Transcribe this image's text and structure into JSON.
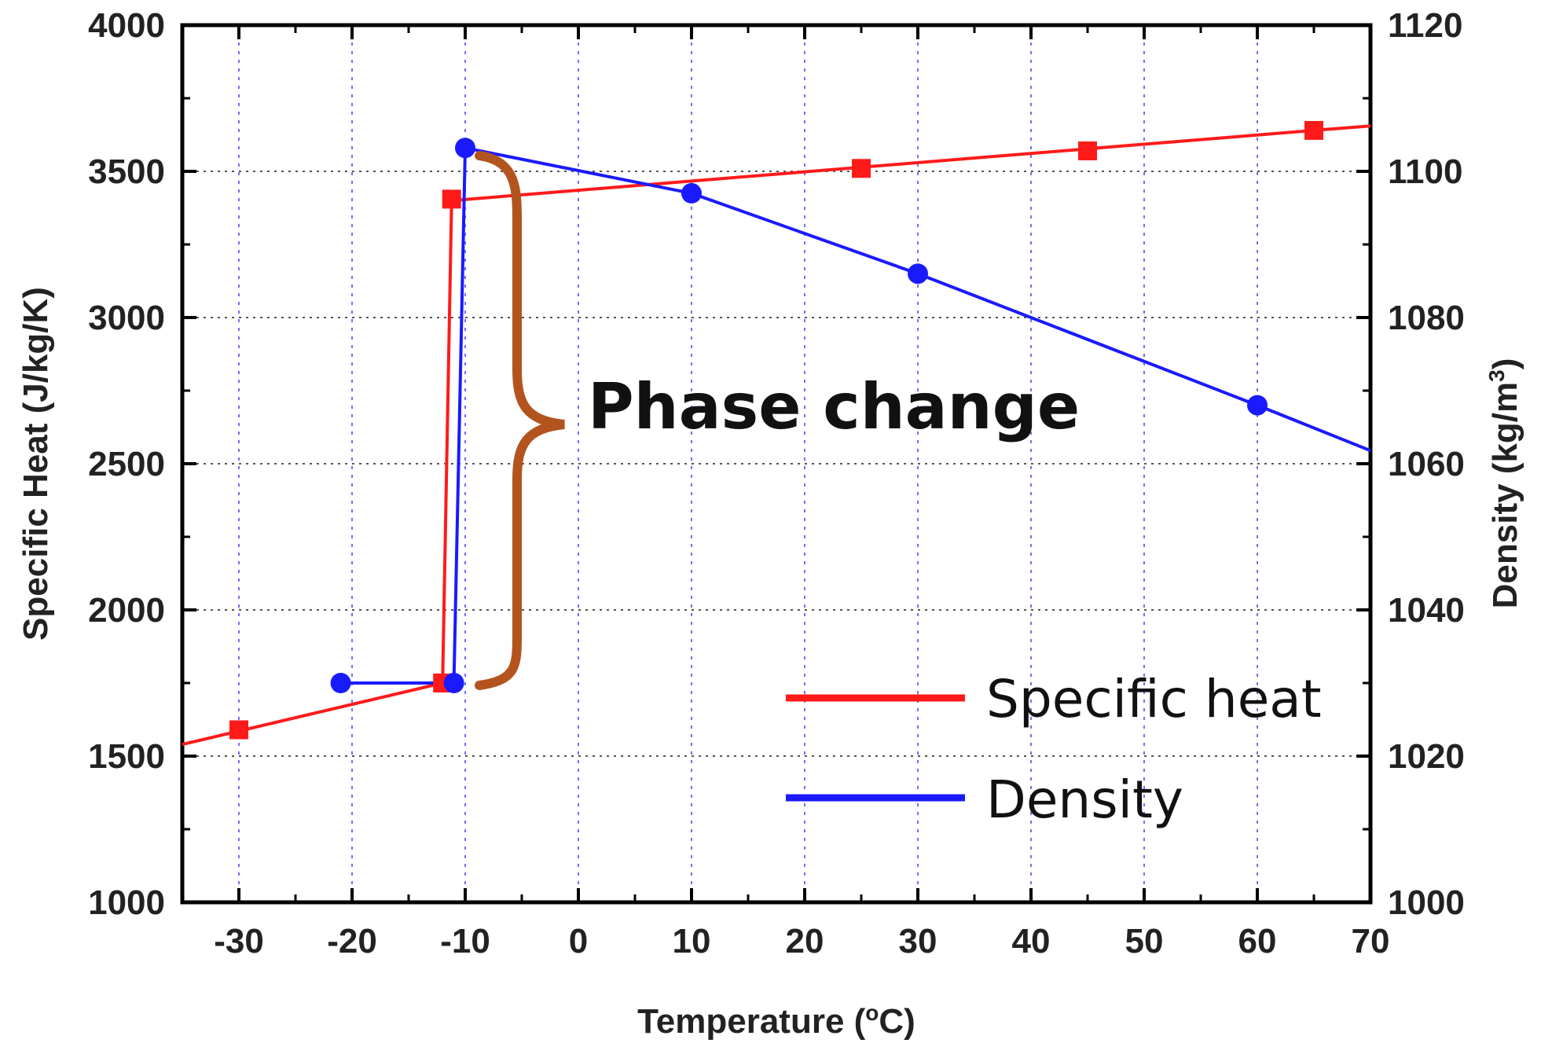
{
  "chart_data": {
    "type": "line",
    "xlabel": "Temperature (°C)",
    "xlabel_prefix": "Temperature (",
    "xlabel_degree": "o",
    "xlabel_suffix": "C)",
    "xlim": [
      -35,
      70
    ],
    "xticks": [
      -30,
      -20,
      -10,
      0,
      10,
      20,
      30,
      40,
      50,
      60,
      70
    ],
    "ylabel_left": "Specific Heat (J/kg/K)",
    "ylim_left": [
      1000,
      4000
    ],
    "yticks_left": [
      1000,
      1500,
      2000,
      2500,
      3000,
      3500,
      4000
    ],
    "ylabel_right": "Density (kg/m3)",
    "ylabel_right_prefix": "Density (kg/m",
    "ylabel_right_sup": "3",
    "ylabel_right_suffix": ")",
    "ylim_right": [
      1000,
      1120
    ],
    "yticks_right": [
      1000,
      1020,
      1040,
      1060,
      1080,
      1100,
      1120
    ],
    "grid": true,
    "legend_position": "bottom-right",
    "annotation": "Phase change",
    "series": [
      {
        "name": "Specific heat",
        "axis": "left",
        "color": "#ff1a1a",
        "marker": "square",
        "line": [
          [
            -35,
            1540
          ],
          [
            -12,
            1750
          ],
          [
            -11.2,
            3400
          ],
          [
            65,
            3640
          ],
          [
            70,
            3655
          ]
        ],
        "markers": [
          [
            -30,
            1590
          ],
          [
            -12,
            1750
          ],
          [
            -11.2,
            3405
          ],
          [
            25,
            3510
          ],
          [
            45,
            3570
          ],
          [
            65,
            3640
          ]
        ]
      },
      {
        "name": "Density",
        "axis": "right",
        "color": "#1a1aff",
        "marker": "circle",
        "line": [
          [
            -21,
            1030
          ],
          [
            -11,
            1030
          ],
          [
            -10,
            1103.2
          ],
          [
            10,
            1097
          ],
          [
            30,
            1086
          ],
          [
            60,
            1068
          ],
          [
            70,
            1061.8
          ]
        ],
        "markers": [
          [
            -21,
            1030
          ],
          [
            -11,
            1030
          ],
          [
            -10,
            1103.2
          ],
          [
            10,
            1097
          ],
          [
            30,
            1086
          ],
          [
            60,
            1068
          ]
        ]
      }
    ]
  }
}
